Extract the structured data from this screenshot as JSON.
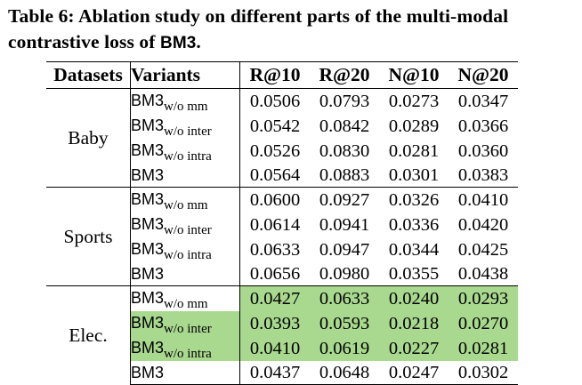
{
  "caption": {
    "line1": "Table 6: Ablation study on different parts of the multi-modal",
    "line2_prefix": "contrastive loss of ",
    "line2_model": "BM3",
    "line2_suffix": "."
  },
  "table": {
    "headers": {
      "dataset": "Datasets",
      "variant": "Variants",
      "metrics": [
        "R@10",
        "R@20",
        "N@10",
        "N@20"
      ]
    },
    "highlight_color": "#a9d98f",
    "groups": [
      {
        "dataset": "Baby",
        "rows": [
          {
            "base": "BM3",
            "sub": "w/o mm",
            "values": [
              "0.0506",
              "0.0793",
              "0.0273",
              "0.0347"
            ],
            "highlight": "none"
          },
          {
            "base": "BM3",
            "sub": "w/o inter",
            "values": [
              "0.0542",
              "0.0842",
              "0.0289",
              "0.0366"
            ],
            "highlight": "none"
          },
          {
            "base": "BM3",
            "sub": "w/o intra",
            "values": [
              "0.0526",
              "0.0830",
              "0.0281",
              "0.0360"
            ],
            "highlight": "none"
          },
          {
            "base": "BM3",
            "sub": "",
            "values": [
              "0.0564",
              "0.0883",
              "0.0301",
              "0.0383"
            ],
            "highlight": "none"
          }
        ]
      },
      {
        "dataset": "Sports",
        "rows": [
          {
            "base": "BM3",
            "sub": "w/o mm",
            "values": [
              "0.0600",
              "0.0927",
              "0.0326",
              "0.0410"
            ],
            "highlight": "none"
          },
          {
            "base": "BM3",
            "sub": "w/o inter",
            "values": [
              "0.0614",
              "0.0941",
              "0.0336",
              "0.0420"
            ],
            "highlight": "none"
          },
          {
            "base": "BM3",
            "sub": "w/o intra",
            "values": [
              "0.0633",
              "0.0947",
              "0.0344",
              "0.0425"
            ],
            "highlight": "none"
          },
          {
            "base": "BM3",
            "sub": "",
            "values": [
              "0.0656",
              "0.0980",
              "0.0355",
              "0.0438"
            ],
            "highlight": "none"
          }
        ]
      },
      {
        "dataset": "Elec.",
        "rows": [
          {
            "base": "BM3",
            "sub": "w/o mm",
            "values": [
              "0.0427",
              "0.0633",
              "0.0240",
              "0.0293"
            ],
            "highlight": "values"
          },
          {
            "base": "BM3",
            "sub": "w/o inter",
            "values": [
              "0.0393",
              "0.0593",
              "0.0218",
              "0.0270"
            ],
            "highlight": "row"
          },
          {
            "base": "BM3",
            "sub": "w/o intra",
            "values": [
              "0.0410",
              "0.0619",
              "0.0227",
              "0.0281"
            ],
            "highlight": "row"
          },
          {
            "base": "BM3",
            "sub": "",
            "values": [
              "0.0437",
              "0.0648",
              "0.0247",
              "0.0302"
            ],
            "highlight": "none"
          }
        ]
      }
    ]
  }
}
